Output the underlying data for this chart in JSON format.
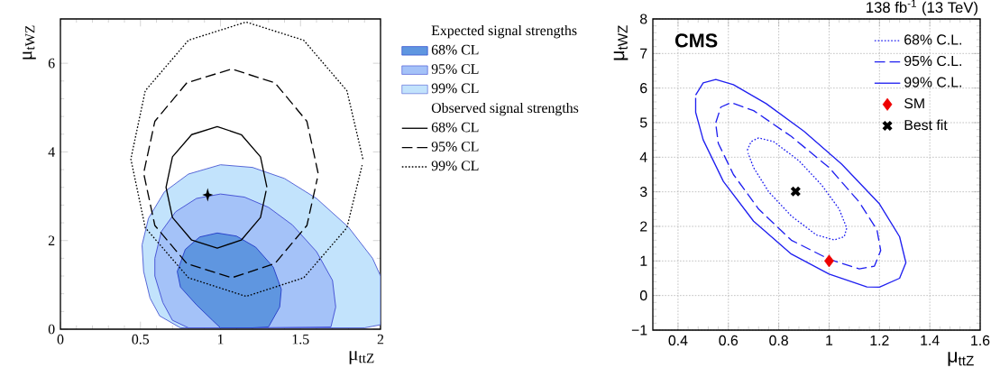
{
  "chart_data": [
    {
      "type": "line",
      "xlabel": "μ$_{ttZ}$",
      "ylabel": "μ$_{tWZ}$",
      "xlim": [
        0,
        2
      ],
      "ylim": [
        0,
        7
      ],
      "xticks": [
        0,
        0.5,
        1,
        1.5,
        2
      ],
      "yticks": [
        0,
        2,
        4,
        6
      ],
      "legend": "right",
      "annotations": [
        "Expected signal strengths",
        "Observed signal strengths"
      ],
      "series": [
        {
          "name": "68% CL",
          "type": "area",
          "color": "#5f96e0",
          "x": [
            0.73,
            0.78,
            0.87,
            0.98,
            1.1,
            1.22,
            1.33,
            1.38,
            1.37,
            1.3,
            1.2,
            1.0,
            0.95,
            0.85,
            0.75,
            0.73
          ],
          "values": [
            1.3,
            1.8,
            2.08,
            2.17,
            2.1,
            1.85,
            1.4,
            0.9,
            0.5,
            0.05,
            0.03,
            0.03,
            0.2,
            0.55,
            0.95,
            1.3
          ]
        },
        {
          "name": "95% CL",
          "type": "area",
          "color": "#a4c2f8",
          "x": [
            0.59,
            0.63,
            0.72,
            0.85,
            1.0,
            1.15,
            1.3,
            1.45,
            1.6,
            1.7,
            1.72,
            1.69,
            1.2,
            0.8,
            0.7,
            0.64,
            0.59,
            0.59
          ],
          "values": [
            1.6,
            2.2,
            2.65,
            2.95,
            3.05,
            2.98,
            2.75,
            2.35,
            1.75,
            1.1,
            0.5,
            0.05,
            0.03,
            0.03,
            0.2,
            0.6,
            1.2,
            1.6
          ]
        },
        {
          "name": "99% CL",
          "type": "area",
          "color": "#c2e3fc",
          "x": [
            0.51,
            0.55,
            0.65,
            0.8,
            1.0,
            1.2,
            1.4,
            1.6,
            1.8,
            1.95,
            2.0,
            2.0,
            1.9,
            0.75,
            0.62,
            0.56,
            0.52,
            0.51
          ],
          "values": [
            1.9,
            2.5,
            3.1,
            3.5,
            3.71,
            3.65,
            3.4,
            2.95,
            2.3,
            1.6,
            1.2,
            0.1,
            0.03,
            0.03,
            0.3,
            0.7,
            1.3,
            1.9
          ]
        },
        {
          "name": "68% CL",
          "color": "#000000",
          "line_style": "solid",
          "x": [
            1.29,
            1.25,
            1.13,
            0.98,
            0.82,
            0.7,
            0.66,
            0.7,
            0.82,
            0.98,
            1.13,
            1.25,
            1.285
          ],
          "values": [
            3.2,
            3.89,
            4.39,
            4.57,
            4.39,
            3.89,
            3.2,
            2.52,
            2.01,
            1.83,
            2.01,
            2.52,
            3.12
          ]
        },
        {
          "name": "95% CL",
          "color": "#000000",
          "line_style": "dashed",
          "x": [
            1.61,
            1.54,
            1.34,
            1.07,
            0.79,
            0.59,
            0.52,
            0.59,
            0.79,
            1.07,
            1.34,
            1.54,
            1.605
          ],
          "values": [
            3.52,
            4.69,
            5.56,
            5.87,
            5.56,
            4.69,
            3.52,
            2.34,
            1.48,
            1.16,
            1.48,
            2.34,
            3.4
          ]
        },
        {
          "name": "99% CL",
          "color": "#000000",
          "line_style": "dotted",
          "x": [
            1.89,
            1.79,
            1.52,
            1.16,
            0.8,
            0.53,
            0.44,
            0.53,
            0.8,
            1.16,
            1.52,
            1.79,
            1.885
          ],
          "values": [
            3.84,
            5.38,
            6.52,
            6.93,
            6.52,
            5.38,
            3.84,
            2.29,
            1.16,
            0.74,
            1.16,
            2.29,
            3.7
          ]
        },
        {
          "type": "scatter",
          "color": "#000000",
          "marker": "star",
          "x": [
            0.92
          ],
          "values": [
            3.03
          ]
        }
      ]
    },
    {
      "type": "line",
      "title": "138 fb$^{-1}$ (13 TeV)",
      "xlabel": "μ$_{ttZ}$",
      "ylabel": "μ$_{tWZ}$",
      "xlim": [
        0.3,
        1.6
      ],
      "ylim": [
        -1,
        8
      ],
      "xticks": [
        0.4,
        0.6,
        0.8,
        1,
        1.2,
        1.4,
        1.6
      ],
      "yticks": [
        {
          "value": -1,
          "label": "−1"
        },
        0,
        1,
        2,
        3,
        4,
        5,
        6,
        7,
        8
      ],
      "grid": true,
      "legend": "top right",
      "annotations": [
        "CMS"
      ],
      "series": [
        {
          "name": "68% C.L.",
          "color": "#1f1ff0",
          "line_style": "dotted",
          "x": [
            0.675,
            0.69,
            0.72,
            0.78,
            0.88,
            0.97,
            1.04,
            1.07,
            1.06,
            1.02,
            0.95,
            0.85,
            0.76,
            0.7,
            0.678
          ],
          "values": [
            4.2,
            4.45,
            4.56,
            4.45,
            3.9,
            3.2,
            2.5,
            1.95,
            1.7,
            1.61,
            1.75,
            2.3,
            3.0,
            3.7,
            4.12
          ]
        },
        {
          "name": "95% C.L.",
          "color": "#1f1ff0",
          "line_style": "dashed",
          "x": [
            0.55,
            0.57,
            0.61,
            0.7,
            0.85,
            1.0,
            1.12,
            1.19,
            1.205,
            1.18,
            1.12,
            1.0,
            0.85,
            0.72,
            0.62,
            0.56,
            0.551
          ],
          "values": [
            5.0,
            5.45,
            5.58,
            5.35,
            4.6,
            3.7,
            2.7,
            1.9,
            1.3,
            0.85,
            0.77,
            1.05,
            1.6,
            2.5,
            3.5,
            4.4,
            4.9
          ]
        },
        {
          "name": "99% C.L.",
          "color": "#1f1ff0",
          "line_style": "solid",
          "x": [
            0.47,
            0.5,
            0.55,
            0.62,
            0.75,
            0.9,
            1.05,
            1.2,
            1.28,
            1.305,
            1.28,
            1.2,
            1.15,
            1.0,
            0.85,
            0.7,
            0.58,
            0.5,
            0.47,
            0.47
          ],
          "values": [
            5.8,
            6.15,
            6.25,
            6.1,
            5.55,
            4.75,
            3.8,
            2.65,
            1.7,
            0.95,
            0.5,
            0.24,
            0.25,
            0.62,
            1.2,
            2.15,
            3.3,
            4.5,
            5.3,
            5.72
          ]
        },
        {
          "name": "SM",
          "type": "scatter",
          "color": "#ee0000",
          "marker": "diamond",
          "x": [
            1
          ],
          "values": [
            1
          ]
        },
        {
          "name": "Best fit",
          "type": "scatter",
          "color": "#000000",
          "marker": "cross",
          "x": [
            0.867
          ],
          "values": [
            3.01
          ]
        }
      ]
    }
  ]
}
